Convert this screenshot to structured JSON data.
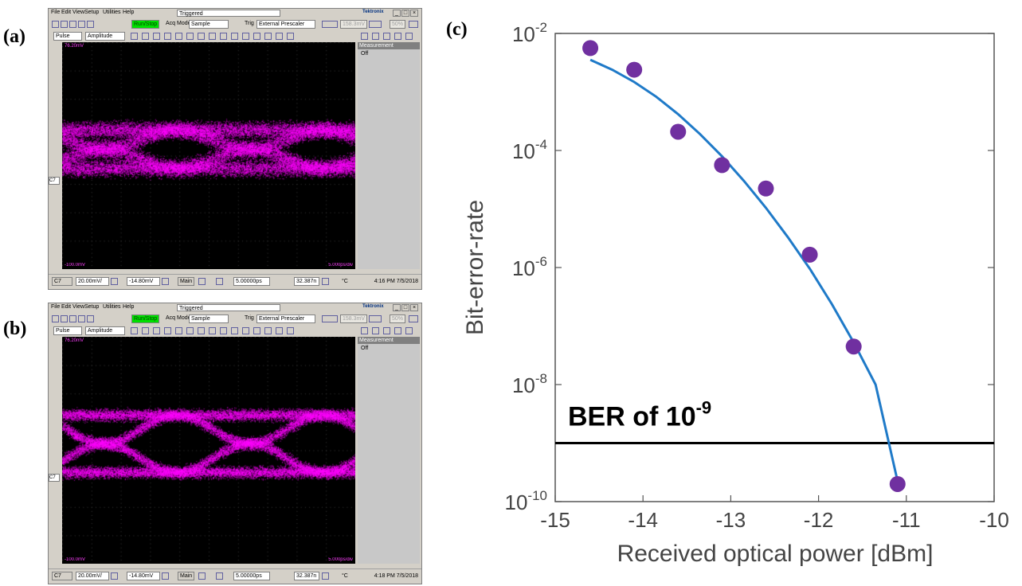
{
  "panels": {
    "a": "(a)",
    "b": "(b)",
    "c": "(c)"
  },
  "scope_common": {
    "menu": [
      "File",
      "Edit",
      "View",
      "Setup",
      "Utilities",
      "Help"
    ],
    "status": "Triggered",
    "brand": "Tektronix",
    "win_buttons": [
      "_",
      "□",
      "×"
    ],
    "run_stop": "Run/Stop",
    "acq_mode_label": "Acq Mode",
    "acq_mode_value": "Sample",
    "trig_label": "Trig",
    "trig_value": "External Prescaler",
    "trig_level": "158.3mV",
    "pct_value": "50%",
    "pulse_value": "Pulse",
    "amplitude_value": "Amplitude",
    "measurement_title": "Measurement",
    "measurement_value": "Off",
    "top_left_label": "76.20mV",
    "bottom_left_label": "-100.0mV",
    "bottom_right_label": "5.000ps/div",
    "channel": "C7",
    "volts_div": "20.00mV/",
    "offset": "-14.80mV",
    "main_label": "Main",
    "timebase": "5.00000ps",
    "position": "32.387n",
    "temp": "°C"
  },
  "scope_a": {
    "timestamp": "4:16 PM 7/5/2018",
    "eye": "closed",
    "eye_color": "#ff00ff"
  },
  "scope_b": {
    "timestamp": "4:18 PM 7/5/2018",
    "eye": "open",
    "eye_color": "#ff00ff"
  },
  "chart_data": {
    "type": "scatter",
    "xlabel": "Received optical power [dBm]",
    "ylabel": "Bit-error-rate",
    "xlim": [
      -15,
      -10
    ],
    "ylim_log10": [
      -10,
      -2
    ],
    "y_scale": "log",
    "x_ticks": [
      "-15",
      "-14",
      "-13",
      "-12",
      "-11",
      "-10"
    ],
    "y_ticks_exponents": [
      "-2",
      "-4",
      "-6",
      "-8",
      "-10"
    ],
    "y_tick_base": "10",
    "grid": false,
    "points_x": [
      -14.6,
      -14.1,
      -13.6,
      -13.1,
      -12.6,
      -12.1,
      -11.6,
      -11.1
    ],
    "points_log10y": [
      -2.25,
      -2.62,
      -3.68,
      -4.25,
      -4.65,
      -5.78,
      -7.35,
      -9.7
    ],
    "fit_x": [
      -14.6,
      -14.35,
      -14.1,
      -13.85,
      -13.6,
      -13.35,
      -13.1,
      -12.85,
      -12.6,
      -12.35,
      -12.1,
      -11.85,
      -11.6,
      -11.35,
      -11.1
    ],
    "fit_log10y": [
      -2.45,
      -2.62,
      -2.83,
      -3.08,
      -3.38,
      -3.72,
      -4.1,
      -4.52,
      -4.98,
      -5.48,
      -6.02,
      -6.62,
      -7.28,
      -8.0,
      -9.65
    ],
    "threshold_log10y": -9.0,
    "threshold_label_prefix": "BER of ",
    "threshold_label_base": "10",
    "threshold_label_exp": "-9",
    "point_color": "#7030a0",
    "line_color": "#1f7ac8",
    "threshold_color": "#000000"
  }
}
